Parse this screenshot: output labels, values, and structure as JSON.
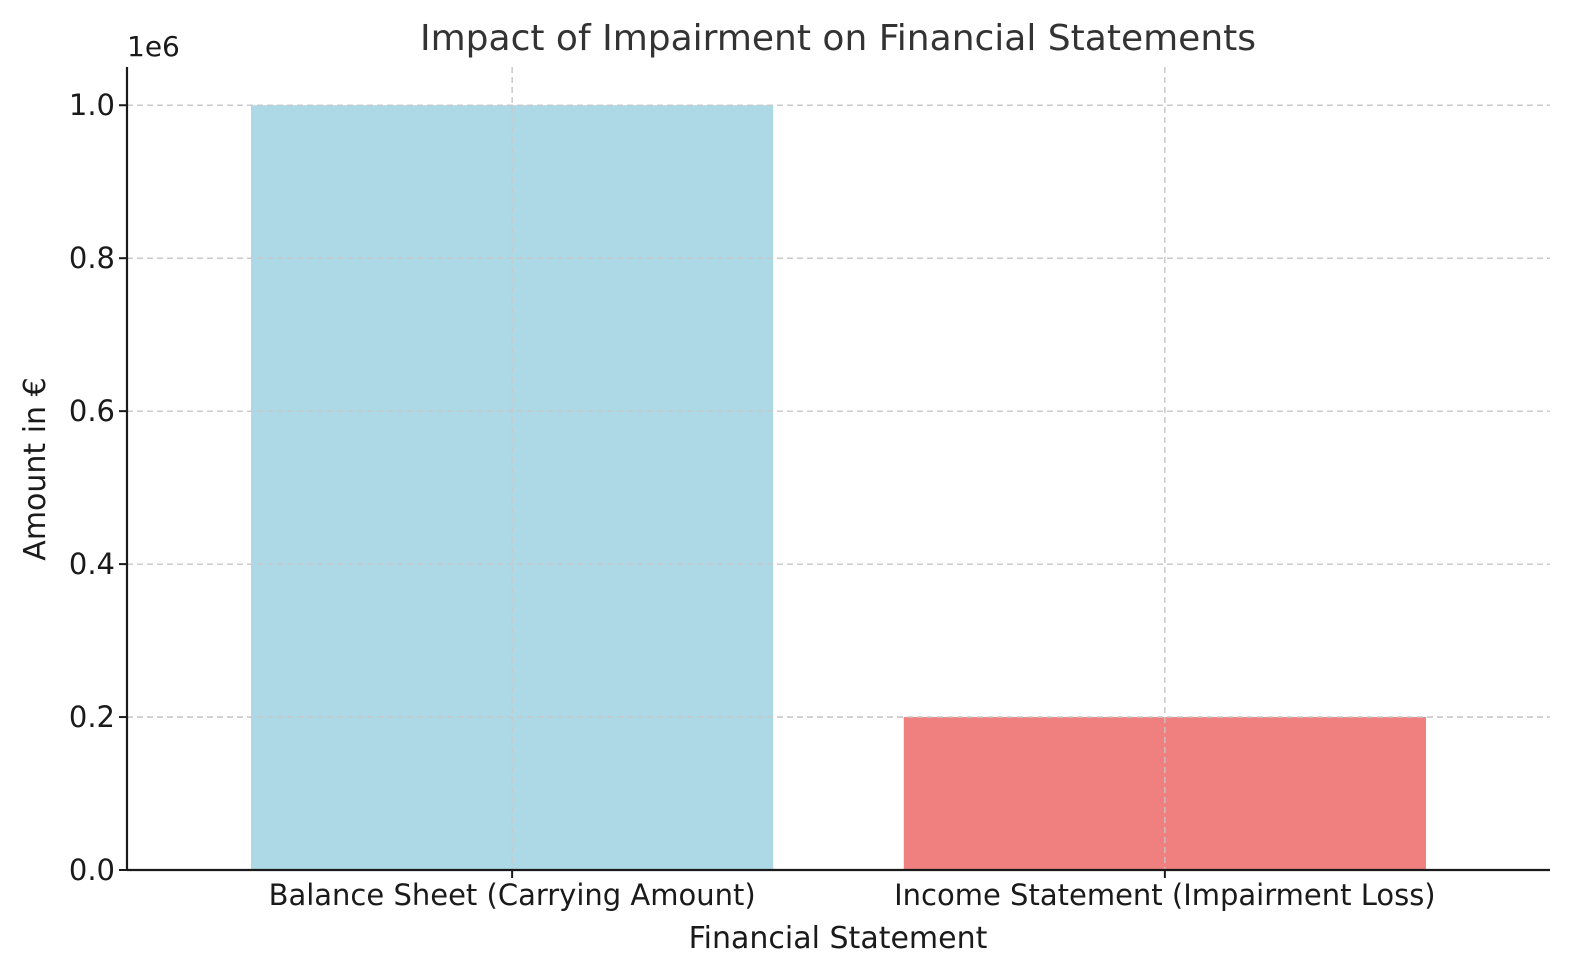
{
  "chart_data": {
    "type": "bar",
    "title": "Impact of Impairment on Financial Statements",
    "xlabel": "Financial Statement",
    "ylabel": "Amount in €",
    "y_offset_label": "1e6",
    "categories": [
      "Balance Sheet (Carrying Amount)",
      "Income Statement (Impairment Loss)"
    ],
    "values": [
      1000000,
      200000
    ],
    "colors": [
      "#add8e6",
      "#f08080"
    ],
    "ylim": [
      0,
      1050000
    ],
    "yticks": [
      0,
      200000,
      400000,
      600000,
      800000,
      1000000
    ],
    "ytick_labels": [
      "0.0",
      "0.2",
      "0.4",
      "0.6",
      "0.8",
      "1.0"
    ],
    "grid": true
  }
}
